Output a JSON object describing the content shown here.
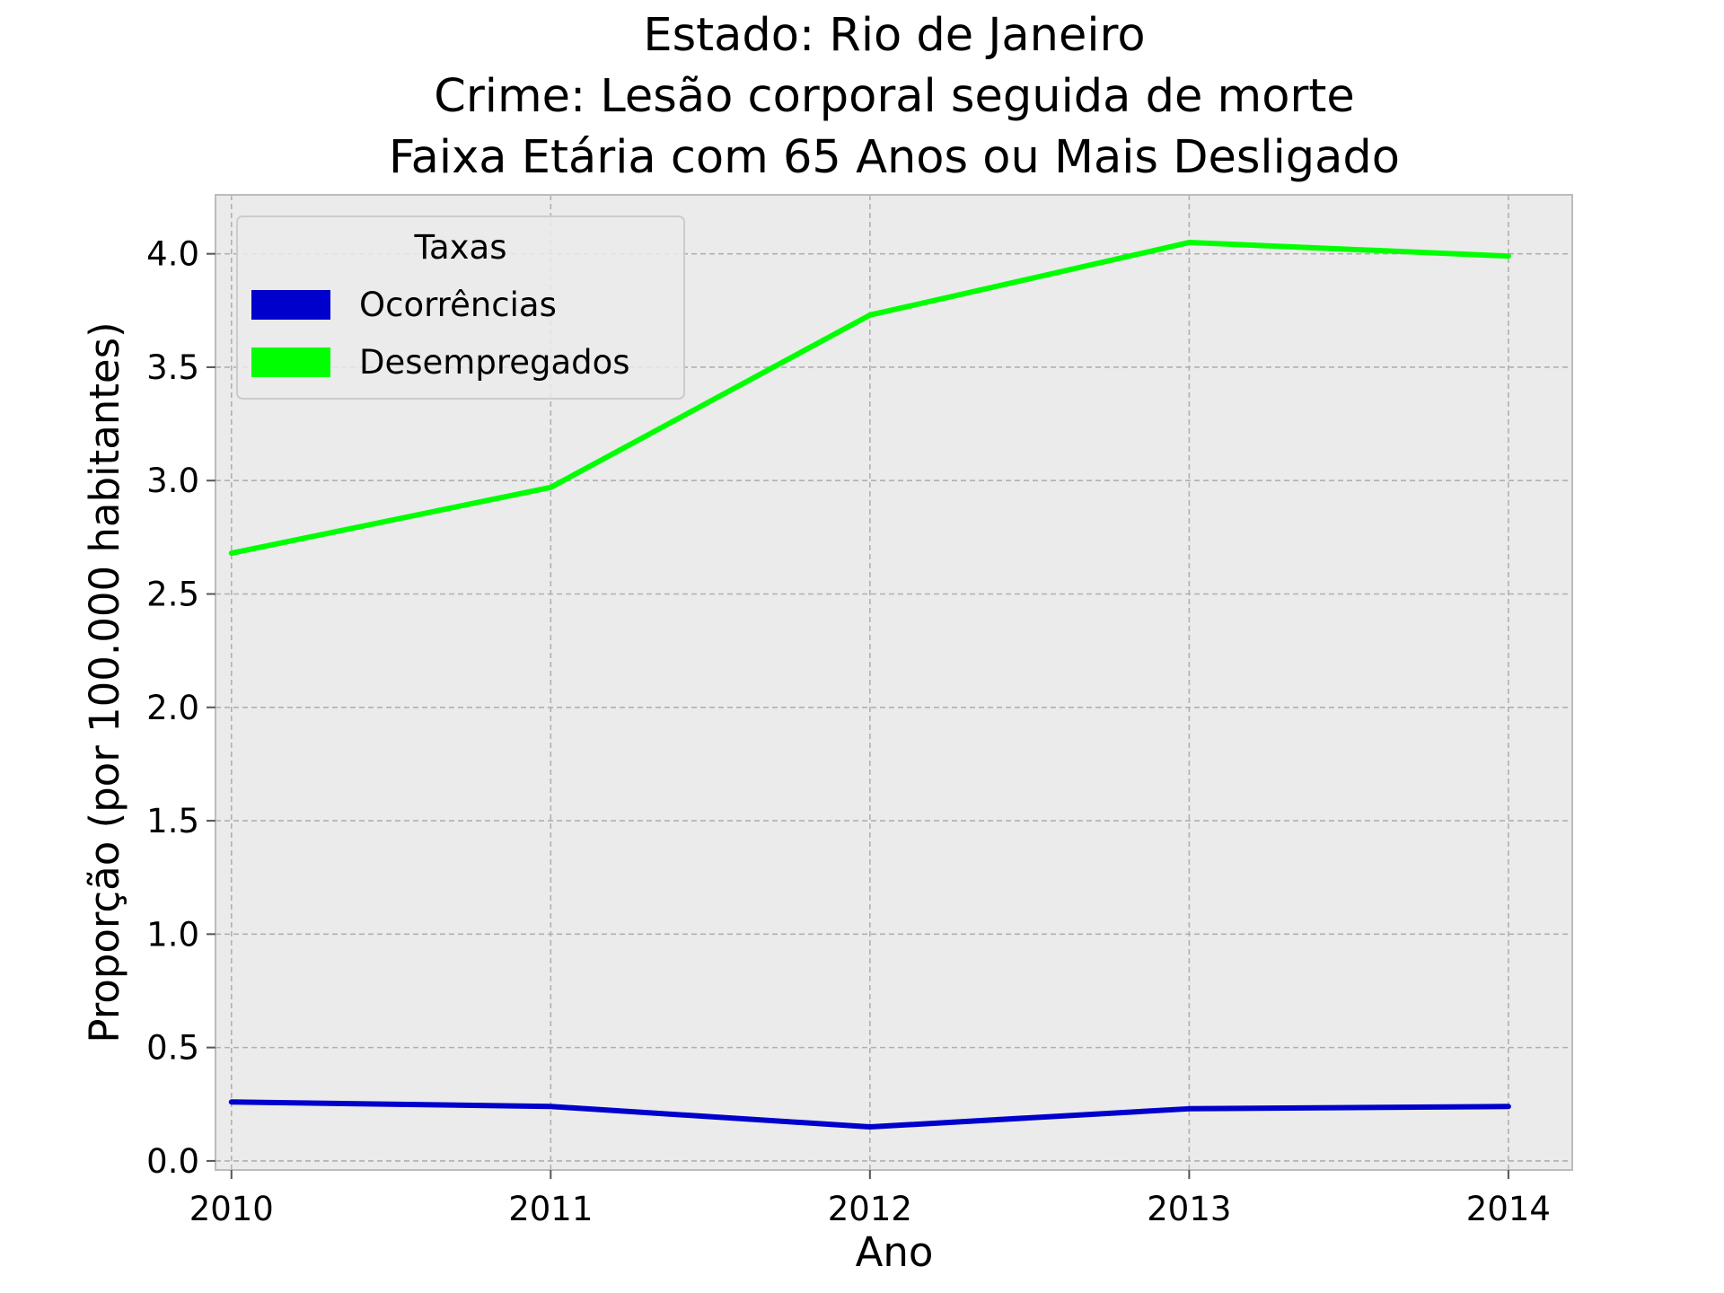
{
  "chart_data": {
    "type": "line",
    "title_lines": [
      "Estado: Rio de Janeiro",
      "Crime: Lesão corporal seguida de morte",
      "Faixa Etária com 65 Anos ou Mais   Desligado"
    ],
    "xlabel": "Ano",
    "ylabel": "Proporção (por 100.000 habitantes)",
    "x": [
      2010,
      2011,
      2012,
      2013,
      2014
    ],
    "x_tick_labels": [
      "2010",
      "2011",
      "2012",
      "2013",
      "2014"
    ],
    "xlim": [
      2009.95,
      2014.2
    ],
    "y_ticks": [
      0.0,
      0.5,
      1.0,
      1.5,
      2.0,
      2.5,
      3.0,
      3.5,
      4.0
    ],
    "y_tick_labels": [
      "0.0",
      "0.5",
      "1.0",
      "1.5",
      "2.0",
      "2.5",
      "3.0",
      "3.5",
      "4.0"
    ],
    "ylim": [
      -0.04,
      4.26
    ],
    "grid": true,
    "legend": {
      "title": "Taxas",
      "placement": "upper-left"
    },
    "series": [
      {
        "name": "Ocorrências",
        "color": "#0000cc",
        "values": [
          0.26,
          0.24,
          0.15,
          0.23,
          0.24
        ]
      },
      {
        "name": "Desempregados",
        "color": "#00ff00",
        "values": [
          2.68,
          2.97,
          3.73,
          4.05,
          3.99
        ]
      }
    ],
    "colors": {
      "plot_background": "#ebebeb",
      "grid": "#b0b0b0",
      "frame": "#bcbcbc"
    }
  }
}
